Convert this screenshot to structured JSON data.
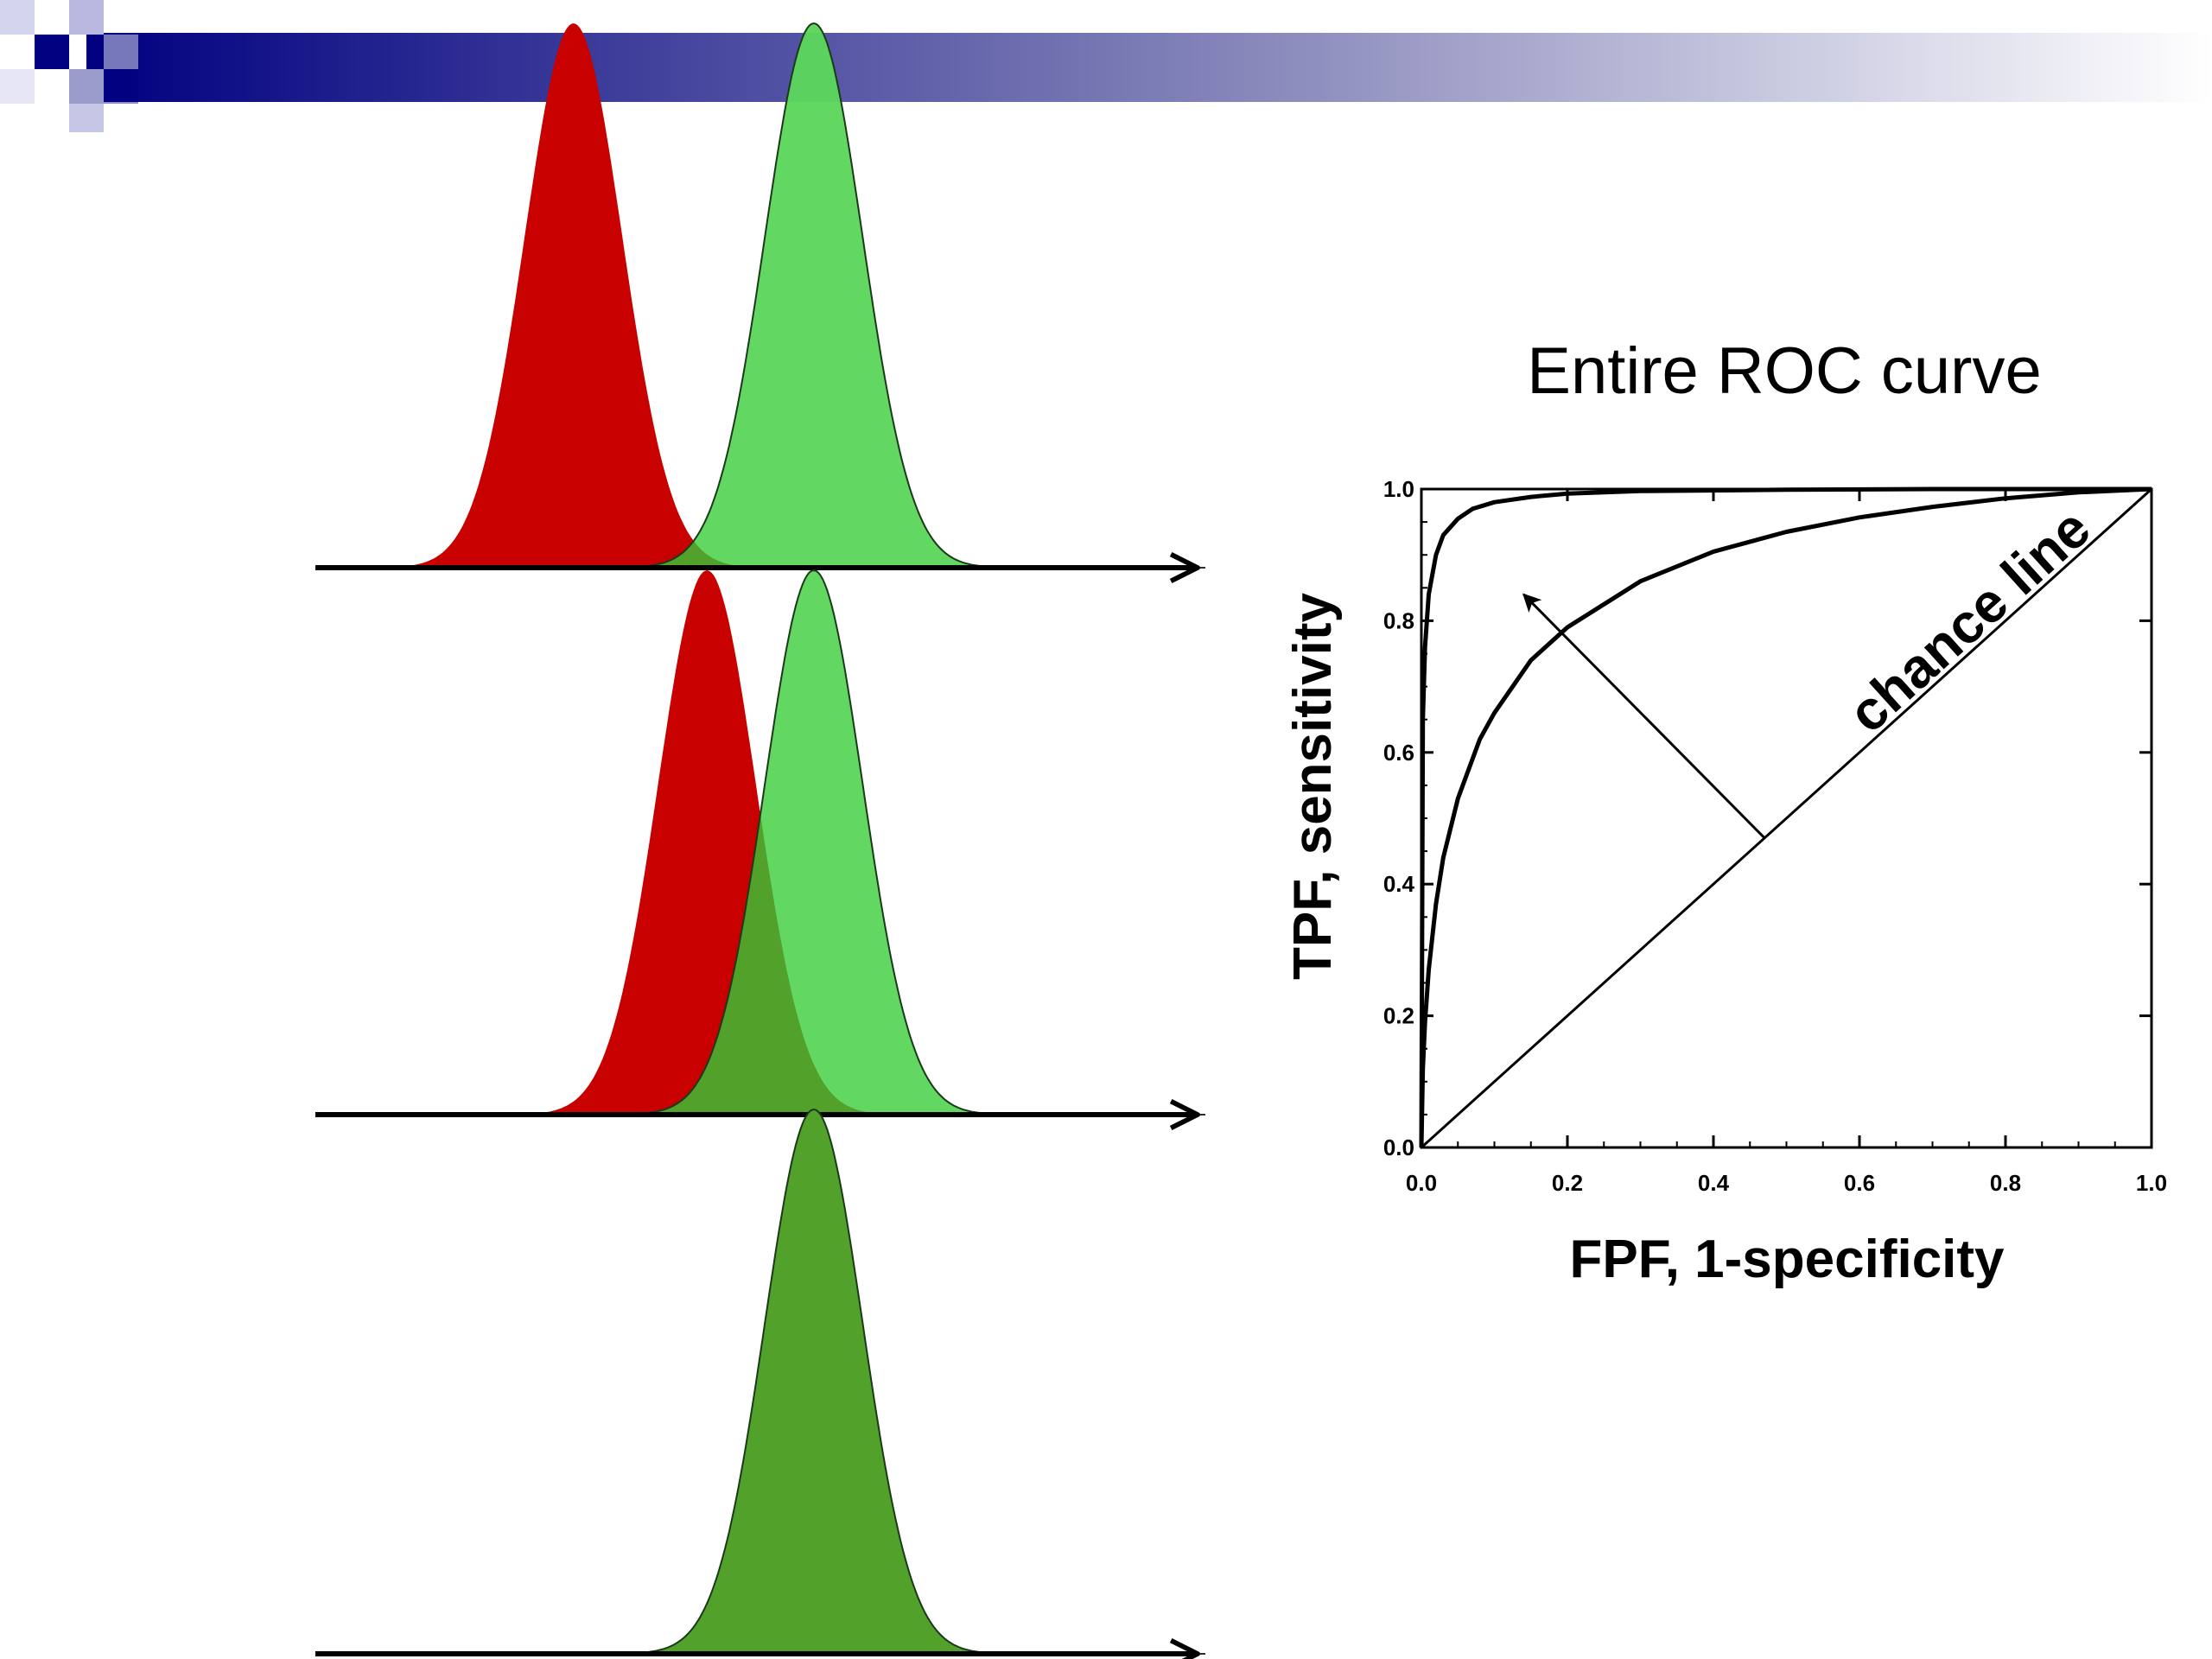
{
  "colors": {
    "banner_start": "#000080",
    "banner_end": "#ffffff",
    "negative": "#c80000",
    "positive": "#5cd65c",
    "overlap": "#52a12a",
    "axis": "#000000"
  },
  "chart_data": [
    {
      "type": "area",
      "name": "distributions",
      "panels": [
        {
          "series": [
            {
              "role": "negative",
              "color": "#c80000",
              "mean": 2.9,
              "sd": 0.55
            },
            {
              "role": "positive",
              "color": "#5cd65c",
              "mean": 5.6,
              "sd": 0.55
            }
          ]
        },
        {
          "series": [
            {
              "role": "negative",
              "color": "#c80000",
              "mean": 4.4,
              "sd": 0.55
            },
            {
              "role": "positive",
              "color": "#5cd65c",
              "mean": 5.6,
              "sd": 0.55
            }
          ]
        },
        {
          "series": [
            {
              "role": "negative",
              "color": "#c80000",
              "mean": 5.6,
              "sd": 0.55
            },
            {
              "role": "positive",
              "color": "#5cd65c",
              "mean": 5.6,
              "sd": 0.55
            }
          ]
        }
      ]
    },
    {
      "type": "line",
      "title": "Entire ROC curve",
      "xlabel": "FPF, 1-specificity",
      "ylabel": "TPF, sensitivity",
      "xlim": [
        0,
        1
      ],
      "ylim": [
        0,
        1
      ],
      "xticks": [
        {
          "value": 0.0,
          "label": "0.0"
        },
        {
          "value": 0.2,
          "label": "0.2"
        },
        {
          "value": 0.4,
          "label": "0.4"
        },
        {
          "value": 0.6,
          "label": "0.6"
        },
        {
          "value": 0.8,
          "label": "0.8"
        },
        {
          "value": 1.0,
          "label": "1.0"
        }
      ],
      "yticks": [
        {
          "value": 0.0,
          "label": "0.0"
        },
        {
          "value": 0.2,
          "label": "0.2"
        },
        {
          "value": 0.4,
          "label": "0.4"
        },
        {
          "value": 0.6,
          "label": "0.6"
        },
        {
          "value": 0.8,
          "label": "0.8"
        },
        {
          "value": 1.0,
          "label": "1.0"
        }
      ],
      "series": [
        {
          "label": "chance line",
          "x": [
            0,
            1
          ],
          "y": [
            0,
            1
          ]
        },
        {
          "x": [
            0,
            0.002,
            0.005,
            0.01,
            0.02,
            0.03,
            0.05,
            0.08,
            0.1,
            0.15,
            0.2,
            0.3,
            0.4,
            0.5,
            0.6,
            0.7,
            0.8,
            0.9,
            1.0
          ],
          "y": [
            0,
            0.12,
            0.19,
            0.27,
            0.37,
            0.44,
            0.53,
            0.62,
            0.66,
            0.74,
            0.79,
            0.86,
            0.905,
            0.935,
            0.957,
            0.973,
            0.986,
            0.995,
            1.0
          ]
        },
        {
          "x": [
            0,
            0.002,
            0.005,
            0.01,
            0.02,
            0.03,
            0.05,
            0.07,
            0.1,
            0.15,
            0.2,
            0.3,
            0.5,
            0.7,
            1.0
          ],
          "y": [
            0,
            0.65,
            0.76,
            0.84,
            0.9,
            0.93,
            0.955,
            0.97,
            0.98,
            0.988,
            0.993,
            0.997,
            0.999,
            1.0,
            1.0
          ]
        }
      ],
      "arrow": {
        "from": [
          0.47,
          0.47
        ],
        "to": [
          0.14,
          0.84
        ]
      }
    }
  ]
}
